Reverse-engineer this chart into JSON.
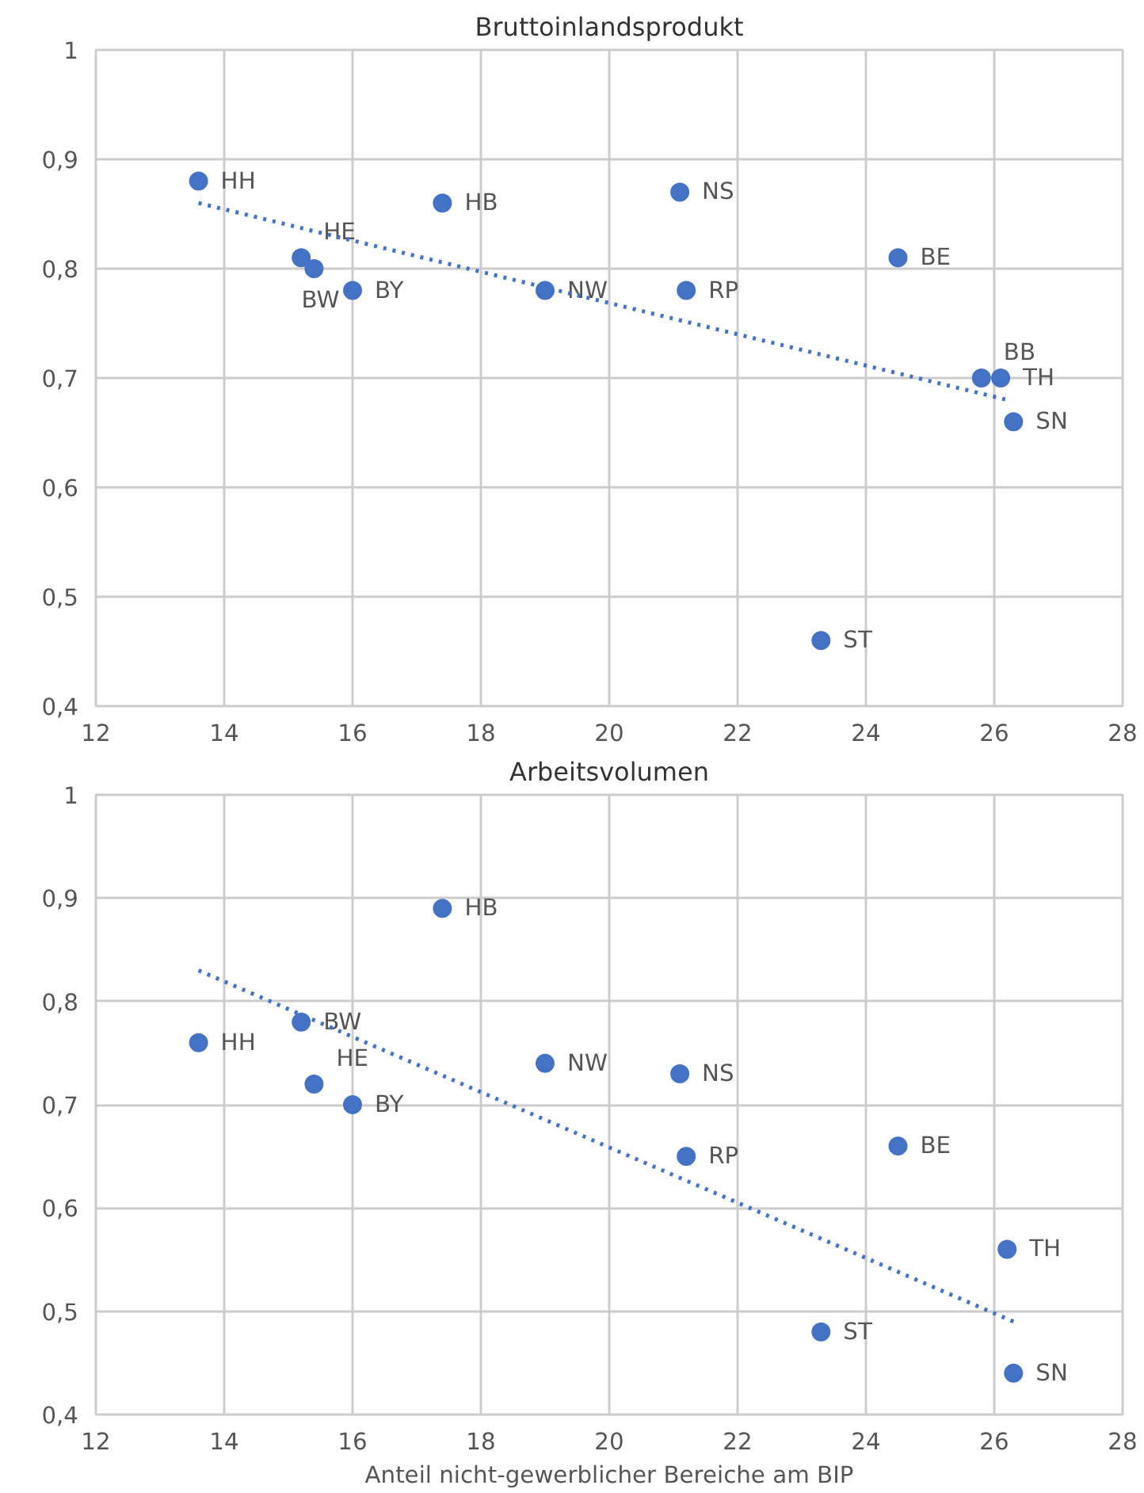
{
  "chart_data": [
    {
      "type": "scatter",
      "title": "Bruttoinlandsprodukt",
      "xlim": [
        12,
        28
      ],
      "xticks": [
        12,
        14,
        16,
        18,
        20,
        22,
        24,
        26,
        28
      ],
      "ylim": [
        0.4,
        1
      ],
      "yticks": [
        {
          "value": 0.4,
          "label": "0,4"
        },
        {
          "value": 0.5,
          "label": "0,5"
        },
        {
          "value": 0.6,
          "label": "0,6"
        },
        {
          "value": 0.7,
          "label": "0,7"
        },
        {
          "value": 0.8,
          "label": "0,8"
        },
        {
          "value": 0.9,
          "label": "0,9"
        },
        1
      ],
      "grid": true,
      "series": [
        {
          "type": "scatter",
          "marker": "circle",
          "color": "#4472c4",
          "x": [
            13.6,
            15.2,
            15.4,
            16.0,
            17.4,
            19.0,
            21.1,
            21.2,
            24.5,
            25.8,
            26.1,
            26.3,
            23.3
          ],
          "values": [
            0.88,
            0.81,
            0.8,
            0.78,
            0.86,
            0.78,
            0.87,
            0.78,
            0.81,
            0.7,
            0.7,
            0.66,
            0.46
          ],
          "value_labels": [
            "HH",
            "HE",
            "BW",
            "BY",
            "HB",
            "NW",
            "NS",
            "RP",
            "BE",
            "BB",
            "TH",
            "SN",
            "ST"
          ]
        },
        {
          "type": "line",
          "line_style": "dotted",
          "color": "#4472c4",
          "x": [
            13.6,
            26.2
          ],
          "values": [
            0.86,
            0.68
          ]
        }
      ]
    },
    {
      "type": "scatter",
      "title": "Arbeitsvolumen",
      "xlabel": "Anteil nicht-gewerblicher Bereiche am BIP",
      "xlim": [
        12,
        28
      ],
      "xticks": [
        12,
        14,
        16,
        18,
        20,
        22,
        24,
        26,
        28
      ],
      "ylim": [
        0.4,
        1
      ],
      "yticks": [
        {
          "value": 0.4,
          "label": "0,4"
        },
        {
          "value": 0.5,
          "label": "0,5"
        },
        {
          "value": 0.6,
          "label": "0,6"
        },
        {
          "value": 0.7,
          "label": "0,7"
        },
        {
          "value": 0.8,
          "label": "0,8"
        },
        {
          "value": 0.9,
          "label": "0,9"
        },
        1
      ],
      "grid": true,
      "series": [
        {
          "type": "scatter",
          "marker": "circle",
          "color": "#4472c4",
          "x": [
            13.6,
            15.2,
            15.4,
            16.0,
            17.4,
            19.0,
            21.1,
            21.2,
            24.5,
            26.2,
            23.3,
            26.3
          ],
          "values": [
            0.76,
            0.78,
            0.72,
            0.7,
            0.89,
            0.74,
            0.73,
            0.65,
            0.66,
            0.56,
            0.48,
            0.44
          ],
          "value_labels": [
            "HH",
            "BW",
            "HE",
            "BY",
            "HB",
            "NW",
            "NS",
            "RP",
            "BE",
            "TH",
            "ST",
            "SN"
          ]
        },
        {
          "type": "line",
          "line_style": "dotted",
          "color": "#4472c4",
          "x": [
            13.6,
            26.3
          ],
          "values": [
            0.83,
            0.49
          ]
        }
      ]
    }
  ]
}
